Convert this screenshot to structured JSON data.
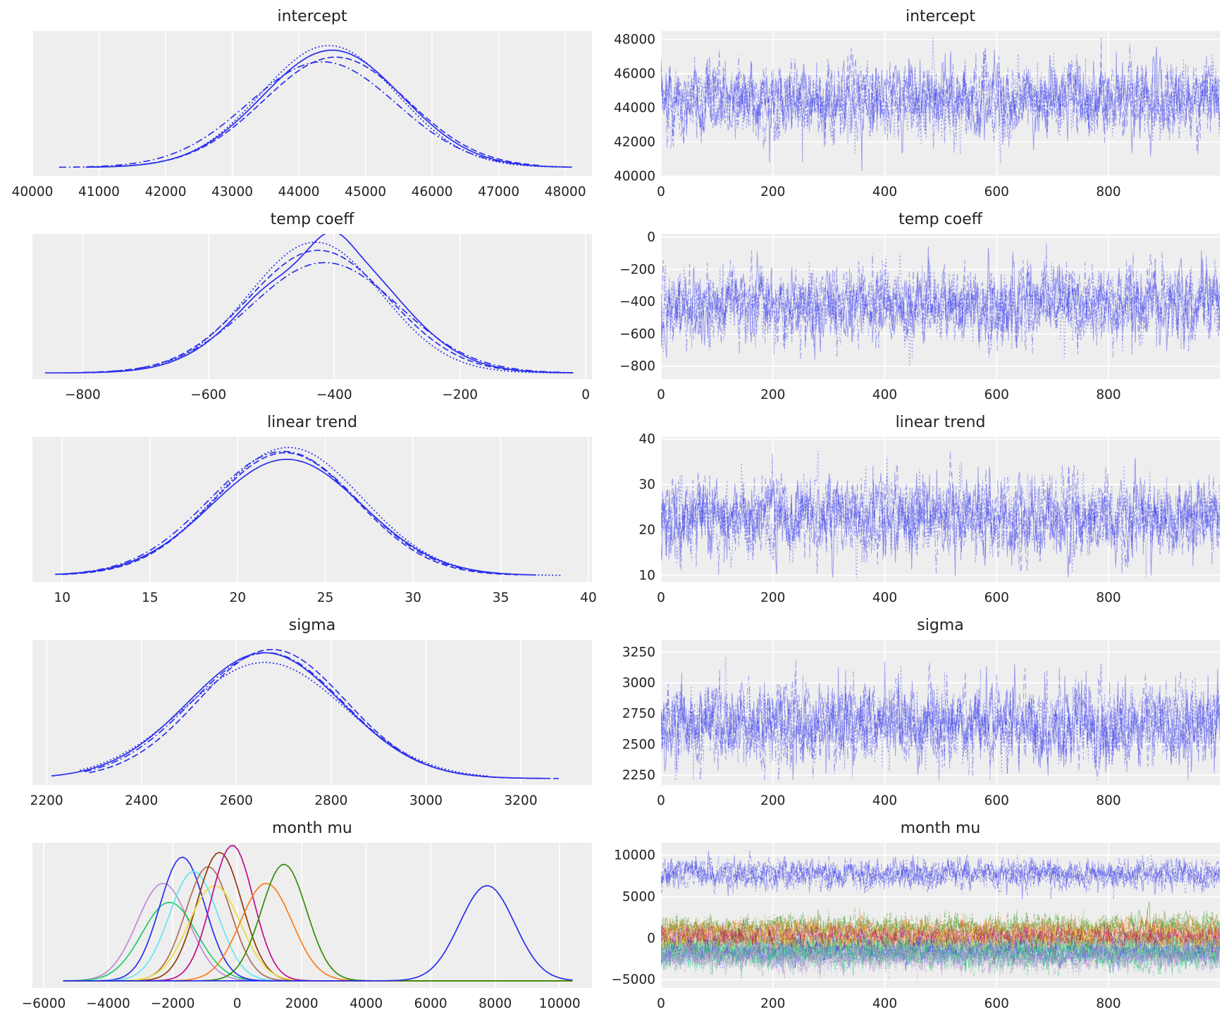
{
  "colors": {
    "primary": "#2a2eec",
    "month_series": [
      "#2a2eec",
      "#fa7c17",
      "#328c06",
      "#c10c90",
      "#933708",
      "#65e5f3",
      "#e6e135",
      "#1ccd6a",
      "#bd8ad5",
      "#b16b57",
      "#2a2eec",
      "#fa7c17"
    ]
  },
  "chart_data": [
    {
      "type": "line",
      "kind": "kde",
      "title": "intercept",
      "grid": "vertical",
      "legend": "none",
      "xlim": [
        40000,
        48400
      ],
      "ylim": [
        -1.5e-05,
        0.000235
      ],
      "xticks": [
        "40000",
        "41000",
        "42000",
        "43000",
        "44000",
        "45000",
        "46000",
        "47000",
        "48000"
      ],
      "xtick_values": [
        40000,
        41000,
        42000,
        43000,
        44000,
        45000,
        46000,
        47000,
        48000
      ],
      "series": [
        {
          "style": "solid",
          "mean": 44500,
          "sd": 1050,
          "peak": 0.000202,
          "range": [
            40900,
            48100
          ]
        },
        {
          "style": "dashed",
          "mean": 44550,
          "sd": 1080,
          "peak": 0.00019,
          "range": [
            40800,
            47600
          ]
        },
        {
          "style": "dotted",
          "mean": 44450,
          "sd": 1020,
          "peak": 0.00021,
          "range": [
            41100,
            47900
          ]
        },
        {
          "style": "dashdot",
          "mean": 44350,
          "sd": 1110,
          "peak": 0.000182,
          "range": [
            40400,
            48000
          ]
        }
      ]
    },
    {
      "type": "line",
      "kind": "trace",
      "title": "intercept",
      "grid": "both",
      "legend": "none",
      "xlim": [
        0,
        999
      ],
      "ylim": [
        40000,
        48500
      ],
      "xticks": [
        "0",
        "200",
        "400",
        "600",
        "800"
      ],
      "xtick_values": [
        0,
        200,
        400,
        600,
        800
      ],
      "yticks": [
        "40000",
        "42000",
        "44000",
        "46000",
        "48000"
      ],
      "ytick_values": [
        40000,
        42000,
        44000,
        46000,
        48000
      ],
      "draws": 1000,
      "series": [
        {
          "mean": 44500,
          "sd": 1050,
          "min": 40300,
          "max": 48100
        }
      ]
    },
    {
      "type": "line",
      "kind": "kde",
      "title": "temp coeff",
      "grid": "vertical",
      "legend": "none",
      "xlim": [
        -880,
        10
      ],
      "ylim": [
        -0.00015,
        0.0034
      ],
      "xticks": [
        "−800",
        "−600",
        "−400",
        "−200",
        "0"
      ],
      "xtick_values": [
        -800,
        -600,
        -400,
        -200,
        0
      ],
      "series": [
        {
          "style": "solid",
          "mean": -415,
          "sd": 110,
          "peak": 0.0032,
          "range": [
            -860,
            -20
          ]
        },
        {
          "style": "dashed",
          "mean": -425,
          "sd": 112,
          "peak": 0.003,
          "range": [
            -790,
            -20
          ]
        },
        {
          "style": "dotted",
          "mean": -430,
          "sd": 105,
          "peak": 0.0032,
          "range": [
            -780,
            -40
          ]
        },
        {
          "style": "dashdot",
          "mean": -415,
          "sd": 118,
          "peak": 0.0027,
          "range": [
            -800,
            -30
          ]
        }
      ]
    },
    {
      "type": "line",
      "kind": "trace",
      "title": "temp coeff",
      "grid": "both",
      "legend": "none",
      "xlim": [
        0,
        999
      ],
      "ylim": [
        -880,
        20
      ],
      "xticks": [
        "0",
        "200",
        "400",
        "600",
        "800"
      ],
      "xtick_values": [
        0,
        200,
        400,
        600,
        800
      ],
      "yticks": [
        "−800",
        "−600",
        "−400",
        "−200",
        "0"
      ],
      "ytick_values": [
        -800,
        -600,
        -400,
        -200,
        0
      ],
      "draws": 1000,
      "series": [
        {
          "mean": -420,
          "sd": 110,
          "min": -860,
          "max": -20
        }
      ]
    },
    {
      "type": "line",
      "kind": "kde",
      "title": "linear trend",
      "grid": "vertical",
      "legend": "none",
      "xlim": [
        8.3,
        40.2
      ],
      "ylim": [
        -0.005,
        0.105
      ],
      "xticks": [
        "10",
        "15",
        "20",
        "25",
        "30",
        "35",
        "40"
      ],
      "xtick_values": [
        10,
        15,
        20,
        25,
        30,
        35,
        40
      ],
      "series": [
        {
          "style": "solid",
          "mean": 22.8,
          "sd": 4.3,
          "peak": 0.088,
          "range": [
            9.6,
            37.0
          ]
        },
        {
          "style": "dashed",
          "mean": 22.7,
          "sd": 4.1,
          "peak": 0.093,
          "range": [
            10.0,
            36.0
          ]
        },
        {
          "style": "dotted",
          "mean": 22.9,
          "sd": 4.2,
          "peak": 0.097,
          "range": [
            10.2,
            38.5
          ]
        },
        {
          "style": "dashdot",
          "mean": 22.6,
          "sd": 4.25,
          "peak": 0.094,
          "range": [
            9.6,
            35.0
          ]
        }
      ]
    },
    {
      "type": "line",
      "kind": "trace",
      "title": "linear trend",
      "grid": "both",
      "legend": "none",
      "xlim": [
        0,
        999
      ],
      "ylim": [
        8.5,
        40.5
      ],
      "xticks": [
        "0",
        "200",
        "400",
        "600",
        "800"
      ],
      "xtick_values": [
        0,
        200,
        400,
        600,
        800
      ],
      "yticks": [
        "10",
        "20",
        "30",
        "40"
      ],
      "ytick_values": [
        10,
        20,
        30,
        40
      ],
      "draws": 1000,
      "series": [
        {
          "mean": 23,
          "sd": 4.2,
          "min": 9.5,
          "max": 38.5
        }
      ]
    },
    {
      "type": "line",
      "kind": "kde",
      "title": "sigma",
      "grid": "vertical",
      "legend": "none",
      "xlim": [
        2170,
        3350
      ],
      "ylim": [
        -0.0002,
        0.0043
      ],
      "xticks": [
        "2200",
        "2400",
        "2600",
        "2800",
        "3000",
        "3200"
      ],
      "xtick_values": [
        2200,
        2400,
        2600,
        2800,
        3000,
        3200
      ],
      "series": [
        {
          "style": "solid",
          "mean": 2660,
          "sd": 162,
          "peak": 0.0039,
          "range": [
            2210,
            3250
          ]
        },
        {
          "style": "dashed",
          "mean": 2675,
          "sd": 155,
          "peak": 0.004,
          "range": [
            2290,
            3280
          ]
        },
        {
          "style": "dotted",
          "mean": 2660,
          "sd": 170,
          "peak": 0.0036,
          "range": [
            2270,
            3130
          ]
        },
        {
          "style": "dashdot",
          "mean": 2665,
          "sd": 160,
          "peak": 0.0039,
          "range": [
            2280,
            3150
          ]
        }
      ]
    },
    {
      "type": "line",
      "kind": "trace",
      "title": "sigma",
      "grid": "both",
      "legend": "none",
      "xlim": [
        0,
        999
      ],
      "ylim": [
        2170,
        3350
      ],
      "xticks": [
        "0",
        "200",
        "400",
        "600",
        "800"
      ],
      "xtick_values": [
        0,
        200,
        400,
        600,
        800
      ],
      "yticks": [
        "2250",
        "2500",
        "2750",
        "3000",
        "3250"
      ],
      "ytick_values": [
        2250,
        2500,
        2750,
        3000,
        3250
      ],
      "draws": 1000,
      "series": [
        {
          "mean": 2665,
          "sd": 160,
          "min": 2210,
          "max": 3300
        }
      ]
    },
    {
      "type": "line",
      "kind": "kde",
      "title": "month mu",
      "grid": "vertical",
      "legend": "none",
      "xlim": [
        -6350,
        11000
      ],
      "ylim": [
        -3e-05,
        0.00058
      ],
      "xticks": [
        "−6000",
        "−4000",
        "−2000",
        "0",
        "2000",
        "4000",
        "6000",
        "8000",
        "10000"
      ],
      "xtick_values": [
        -6000,
        -4000,
        -2000,
        0,
        2000,
        4000,
        6000,
        8000,
        10000
      ],
      "series": [
        {
          "style": "solid",
          "mean": -2300,
          "sd": 800,
          "peak": 0.00041,
          "color_index": 8
        },
        {
          "style": "solid",
          "mean": -2100,
          "sd": 850,
          "peak": 0.00033,
          "color_index": 7
        },
        {
          "style": "solid",
          "mean": -1700,
          "sd": 700,
          "peak": 0.00052,
          "color_index": 0
        },
        {
          "style": "solid",
          "mean": -1350,
          "sd": 750,
          "peak": 0.00046,
          "color_index": 5
        },
        {
          "style": "solid",
          "mean": -900,
          "sd": 700,
          "peak": 0.00048,
          "color_index": 9
        },
        {
          "style": "solid",
          "mean": -550,
          "sd": 700,
          "peak": 0.00054,
          "color_index": 4
        },
        {
          "style": "solid",
          "mean": -700,
          "sd": 800,
          "peak": 0.0004,
          "color_index": 6
        },
        {
          "style": "solid",
          "mean": -150,
          "sd": 650,
          "peak": 0.00057,
          "color_index": 3
        },
        {
          "style": "solid",
          "mean": 900,
          "sd": 800,
          "peak": 0.00041,
          "color_index": 1
        },
        {
          "style": "solid",
          "mean": 1450,
          "sd": 700,
          "peak": 0.00049,
          "color_index": 2
        },
        {
          "style": "solid",
          "mean": 7750,
          "sd": 850,
          "peak": 0.0004,
          "color_index": 0
        }
      ],
      "range": [
        -5400,
        10400
      ]
    },
    {
      "type": "line",
      "kind": "trace",
      "title": "month mu",
      "grid": "both",
      "legend": "none",
      "xlim": [
        0,
        999
      ],
      "ylim": [
        -6000,
        11500
      ],
      "xticks": [
        "0",
        "200",
        "400",
        "600",
        "800"
      ],
      "xtick_values": [
        0,
        200,
        400,
        600,
        800
      ],
      "yticks": [
        "−5000",
        "0",
        "5000",
        "10000"
      ],
      "ytick_values": [
        -5000,
        0,
        5000,
        10000
      ],
      "draws": 1000,
      "series": [
        {
          "mean": 7750,
          "sd": 850,
          "color_index": 0
        },
        {
          "mean": 1200,
          "sd": 800,
          "color_index": 2
        },
        {
          "mean": 700,
          "sd": 800,
          "color_index": 1
        },
        {
          "mean": -100,
          "sd": 700,
          "color_index": 3
        },
        {
          "mean": -600,
          "sd": 700,
          "color_index": 4
        },
        {
          "mean": -1000,
          "sd": 800,
          "color_index": 6
        },
        {
          "mean": -1400,
          "sd": 750,
          "color_index": 5
        },
        {
          "mean": -1750,
          "sd": 700,
          "color_index": 0
        },
        {
          "mean": -2100,
          "sd": 850,
          "color_index": 7
        },
        {
          "mean": -2300,
          "sd": 800,
          "color_index": 8
        }
      ]
    }
  ]
}
